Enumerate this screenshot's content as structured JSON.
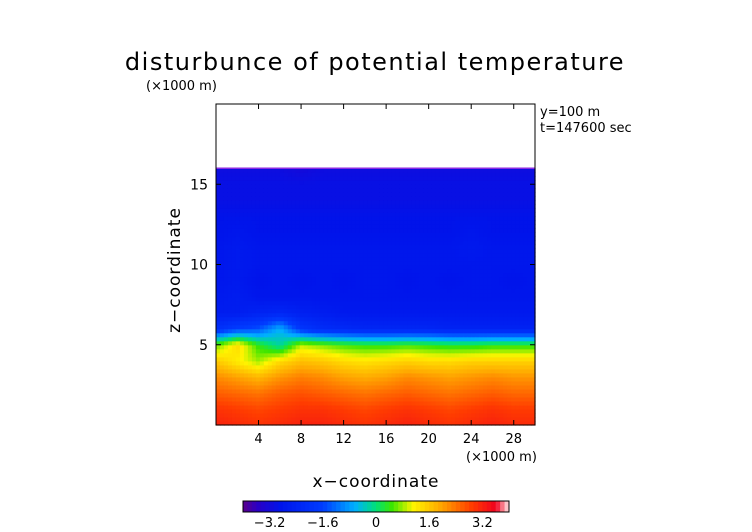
{
  "chart_data": {
    "type": "heatmap",
    "title": "disturbunce of potential temperature",
    "xlabel": "x−coordinate",
    "ylabel": "z−coordinate",
    "x_unit": "(×1000 m)",
    "y_unit": "(×1000 m)",
    "annotations": [
      "y=100 m",
      "t=147600 sec"
    ],
    "xlim": [
      0,
      30
    ],
    "ylim": [
      0,
      20
    ],
    "x_ticks": [
      4,
      8,
      12,
      16,
      20,
      24,
      28
    ],
    "y_ticks": [
      5,
      10,
      15
    ],
    "x_tick_labels": [
      "4",
      "8",
      "12",
      "16",
      "20",
      "24",
      "28"
    ],
    "y_tick_labels": [
      "5",
      "10",
      "15"
    ],
    "colorbar": {
      "range": [
        -4,
        4
      ],
      "ticks": [
        -3.2,
        -1.6,
        0,
        1.6,
        3.2
      ],
      "tick_labels": [
        "−3.2",
        "−1.6",
        "0",
        "1.6",
        "3.2"
      ],
      "colormap": "rainbow"
    },
    "field": {
      "x": [
        0,
        2,
        4,
        6,
        8,
        10,
        12,
        14,
        16,
        18,
        20,
        22,
        24,
        26,
        28,
        30
      ],
      "z": [
        0,
        1,
        2,
        3,
        4,
        5,
        6,
        7,
        8,
        9,
        10,
        11,
        12,
        13,
        14,
        15,
        16
      ],
      "values": [
        [
          3.2,
          3.1,
          3.0,
          3.1,
          3.2,
          3.2,
          3.1,
          3.0,
          3.1,
          3.2,
          3.1,
          3.0,
          3.1,
          3.2,
          3.1,
          3.1
        ],
        [
          3.0,
          2.9,
          2.8,
          2.9,
          3.0,
          3.0,
          2.9,
          2.8,
          2.9,
          3.0,
          2.9,
          2.8,
          2.9,
          3.0,
          2.9,
          2.9
        ],
        [
          2.6,
          2.5,
          2.4,
          2.6,
          2.7,
          2.6,
          2.5,
          2.4,
          2.5,
          2.6,
          2.5,
          2.4,
          2.5,
          2.6,
          2.5,
          2.5
        ],
        [
          2.2,
          2.0,
          1.8,
          2.1,
          2.3,
          2.2,
          2.0,
          1.9,
          2.0,
          2.2,
          2.1,
          2.0,
          2.1,
          2.2,
          2.1,
          2.1
        ],
        [
          1.6,
          1.2,
          0.8,
          1.4,
          1.7,
          1.6,
          1.4,
          1.3,
          1.4,
          1.5,
          1.4,
          1.4,
          1.5,
          1.5,
          1.5,
          1.5
        ],
        [
          0.6,
          1.4,
          0.4,
          -0.2,
          0.9,
          0.7,
          0.5,
          0.4,
          0.4,
          0.5,
          0.4,
          0.3,
          0.3,
          0.4,
          0.4,
          0.4
        ],
        [
          -2.0,
          -1.6,
          -1.4,
          -0.6,
          -1.8,
          -2.1,
          -2.2,
          -2.3,
          -2.3,
          -2.3,
          -2.3,
          -2.4,
          -2.4,
          -2.4,
          -2.4,
          -2.4
        ],
        [
          -2.6,
          -2.6,
          -2.4,
          -2.3,
          -2.5,
          -2.6,
          -2.7,
          -2.7,
          -2.7,
          -2.7,
          -2.7,
          -2.7,
          -2.7,
          -2.7,
          -2.7,
          -2.7
        ],
        [
          -2.7,
          -2.6,
          -2.8,
          -2.8,
          -2.8,
          -2.8,
          -2.8,
          -2.8,
          -2.8,
          -2.8,
          -2.8,
          -2.8,
          -2.8,
          -2.8,
          -2.8,
          -2.8
        ],
        [
          -2.8,
          -2.7,
          -2.9,
          -2.8,
          -2.9,
          -2.8,
          -2.9,
          -2.8,
          -2.8,
          -2.9,
          -2.8,
          -2.9,
          -2.8,
          -2.8,
          -2.9,
          -2.8
        ],
        [
          -2.8,
          -2.7,
          -2.8,
          -2.8,
          -2.8,
          -2.8,
          -2.8,
          -2.8,
          -2.8,
          -2.8,
          -2.8,
          -2.8,
          -2.8,
          -2.8,
          -2.8,
          -2.8
        ],
        [
          -2.8,
          -2.7,
          -2.8,
          -2.8,
          -2.8,
          -2.8,
          -2.8,
          -2.8,
          -2.8,
          -2.8,
          -2.8,
          -2.8,
          -2.7,
          -2.8,
          -2.8,
          -2.8
        ],
        [
          -2.9,
          -2.8,
          -2.9,
          -2.9,
          -2.9,
          -2.9,
          -2.9,
          -2.9,
          -2.9,
          -2.9,
          -2.9,
          -2.9,
          -2.8,
          -2.9,
          -2.9,
          -2.9
        ],
        [
          -2.9,
          -2.9,
          -2.9,
          -2.9,
          -2.9,
          -2.9,
          -2.9,
          -2.9,
          -2.9,
          -2.9,
          -2.9,
          -2.9,
          -2.9,
          -2.9,
          -2.9,
          -2.9
        ],
        [
          -3.0,
          -3.0,
          -3.0,
          -3.0,
          -3.0,
          -3.0,
          -3.0,
          -3.0,
          -3.0,
          -3.0,
          -3.0,
          -3.0,
          -3.0,
          -3.0,
          -3.0,
          -3.0
        ],
        [
          -3.0,
          -3.0,
          -3.0,
          -3.0,
          -3.0,
          -3.0,
          -3.0,
          -3.0,
          -3.0,
          -3.0,
          -3.0,
          -3.0,
          -3.0,
          -3.0,
          -3.0,
          -3.0
        ],
        [
          -3.1,
          -3.1,
          -3.1,
          -3.1,
          -3.2,
          -3.1,
          -3.1,
          -3.1,
          -3.1,
          -3.1,
          -3.1,
          -3.1,
          -3.1,
          -3.1,
          -3.1,
          -3.1
        ]
      ]
    }
  }
}
